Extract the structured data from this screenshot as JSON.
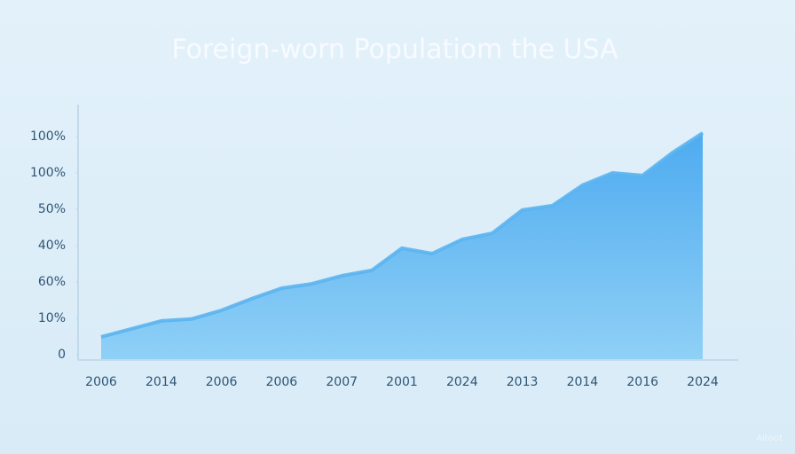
{
  "chart_data": {
    "type": "area",
    "title": "Foreign-worn Populatiom the USA",
    "categories": [
      "2006",
      null,
      "2014",
      null,
      "2006",
      null,
      "2006",
      null,
      "2007",
      null,
      "2001",
      null,
      "2024",
      null,
      "2013",
      null,
      "2014",
      null,
      "2016",
      null,
      "2024"
    ],
    "series": [
      {
        "color": "#5ab4f0",
        "values": [
          0.49,
          0.71,
          0.93,
          0.98,
          1.22,
          1.54,
          1.83,
          1.95,
          2.17,
          2.32,
          2.93,
          2.78,
          3.17,
          3.34,
          3.98,
          4.1,
          4.66,
          5.0,
          4.93,
          5.56,
          6.1
        ]
      }
    ],
    "ylim": [
      0,
      7
    ],
    "yticks": [
      {
        "value": 0,
        "label": "0"
      },
      {
        "value": 1,
        "label": "10%"
      },
      {
        "value": 2,
        "label": "60%"
      },
      {
        "value": 3,
        "label": "40%"
      },
      {
        "value": 4,
        "label": "50%"
      },
      {
        "value": 5,
        "label": "100%"
      },
      {
        "value": 6,
        "label": "100%"
      }
    ],
    "watermark": "Aitoot"
  }
}
